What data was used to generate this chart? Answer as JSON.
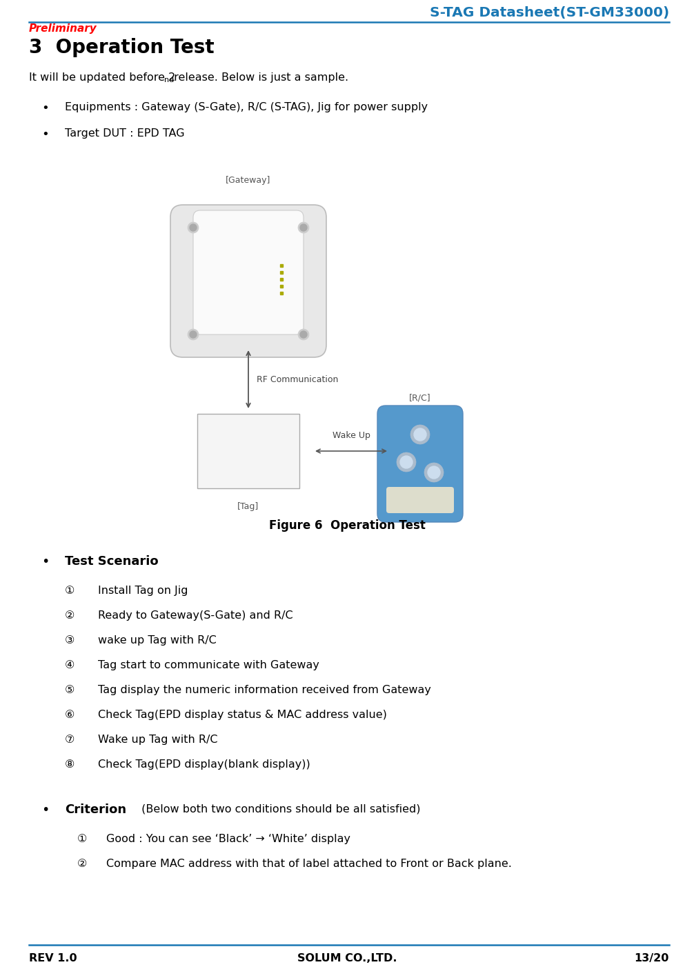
{
  "title": "S-TAG Datasheet(ST-GM33000)",
  "title_color": "#1A78B4",
  "preliminary_text": "Preliminary",
  "preliminary_color": "#FF0000",
  "section_title": "3  Operation Test",
  "intro_line1": "It will be updated before 2",
  "intro_sup": "nd",
  "intro_line2": " release. Below is just a sample.",
  "bullet1": "Equipments : Gateway (S-Gate), R/C (S-TAG), Jig for power supply",
  "bullet2": "Target DUT : EPD TAG",
  "figure_caption": "Figure 6  Operation Test",
  "ts_title": "Test Scenario",
  "ts_items": [
    "Install Tag on Jig",
    "Ready to Gateway(S-Gate) and R/C",
    "wake up Tag with R/C",
    "Tag start to communicate with Gateway",
    "Tag display the numeric information received from Gateway",
    "Check Tag(EPD display status & MAC address value)",
    "Wake up Tag with R/C",
    "Check Tag(EPD display(blank display))"
  ],
  "crit_title": "Criterion",
  "crit_intro": " (Below both two conditions should be all satisfied)",
  "crit_items": [
    "Good : You can see ‘Black’ → ‘White’ display",
    "Compare MAC address with that of label attached to Front or Back plane."
  ],
  "footer_left": "REV 1.0",
  "footer_center": "SOLUM CO.,LTD.",
  "footer_right": "13/20",
  "line_color": "#1A78B4",
  "bg": "#FFFFFF",
  "fg": "#000000",
  "nums": [
    "①",
    "②",
    "③",
    "④",
    "⑤",
    "⑥",
    "⑦",
    "⑧"
  ]
}
